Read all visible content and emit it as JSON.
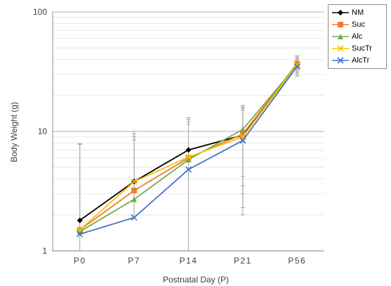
{
  "chart_data": {
    "type": "line",
    "xlabel": "Postnatal Day (P)",
    "ylabel": "Body Weight (g)",
    "yscale": "log",
    "ylim": [
      1,
      100
    ],
    "y_tick_labels": [
      "1",
      "10",
      "100"
    ],
    "categories": [
      "P0",
      "P7",
      "P14",
      "P21",
      "P56"
    ],
    "grid": "horizontal minor log gridlines",
    "legend_position": "top-right",
    "series": [
      {
        "name": "NM",
        "color": "#000000",
        "marker": "diamond",
        "values": [
          1.8,
          3.8,
          7.0,
          9.3,
          37
        ],
        "error_upper": [
          null,
          null,
          12.5,
          16,
          41
        ],
        "error_lower": [
          null,
          null,
          null,
          4.2,
          33
        ]
      },
      {
        "name": "Suc",
        "color": "#ed7d31",
        "marker": "square",
        "values": [
          1.5,
          3.2,
          6.0,
          9.5,
          37
        ],
        "error_upper": [
          null,
          9,
          13,
          16.5,
          42
        ],
        "error_lower": [
          null,
          null,
          null,
          3.5,
          32
        ]
      },
      {
        "name": "Alc",
        "color": "#70ad47",
        "marker": "triangle",
        "values": [
          1.45,
          2.7,
          5.8,
          10.4,
          36
        ],
        "error_upper": [
          null,
          9.5,
          12,
          15.5,
          40
        ],
        "error_lower": [
          null,
          null,
          null,
          2.3,
          30
        ]
      },
      {
        "name": "SucTr",
        "color": "#ffc000",
        "marker": "x",
        "values": [
          1.5,
          3.8,
          6.1,
          9.0,
          36
        ],
        "error_upper": [
          7.8,
          10,
          11.5,
          15,
          40
        ],
        "error_lower": [
          null,
          null,
          null,
          2.0,
          31
        ]
      },
      {
        "name": "AlcTr",
        "color": "#4472c4",
        "marker": "x",
        "values": [
          1.38,
          1.9,
          4.8,
          8.4,
          35
        ],
        "error_upper": [
          7.9,
          8.5,
          13,
          16,
          43
        ],
        "error_lower": [
          null,
          null,
          null,
          3.0,
          29
        ]
      }
    ]
  }
}
